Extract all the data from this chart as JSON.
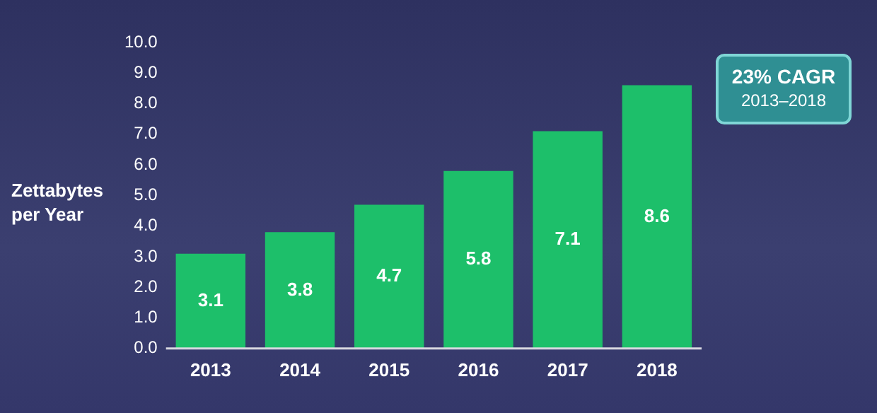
{
  "chart_data": {
    "type": "bar",
    "ylabel": "Zettabytes per Year",
    "categories": [
      "2013",
      "2014",
      "2015",
      "2016",
      "2017",
      "2018"
    ],
    "values": [
      3.1,
      3.8,
      4.7,
      5.8,
      7.1,
      8.6
    ],
    "color": "#1dbf6a",
    "ylim": [
      0,
      10
    ],
    "yticks": [
      {
        "value": 0,
        "label": "0.0"
      },
      {
        "value": 1,
        "label": "1.0"
      },
      {
        "value": 2,
        "label": "2.0"
      },
      {
        "value": 3,
        "label": "3.0"
      },
      {
        "value": 4,
        "label": "4.0"
      },
      {
        "value": 5,
        "label": "5.0"
      },
      {
        "value": 6,
        "label": "6.0"
      },
      {
        "value": 7,
        "label": "7.0"
      },
      {
        "value": 8,
        "label": "8.0"
      },
      {
        "value": 9,
        "label": "9.0"
      },
      {
        "value": 10,
        "label": "10.0"
      }
    ],
    "data_labels": true,
    "grid": false,
    "legend": false,
    "annotations": [
      "23% CAGR",
      "2013–2018"
    ]
  }
}
